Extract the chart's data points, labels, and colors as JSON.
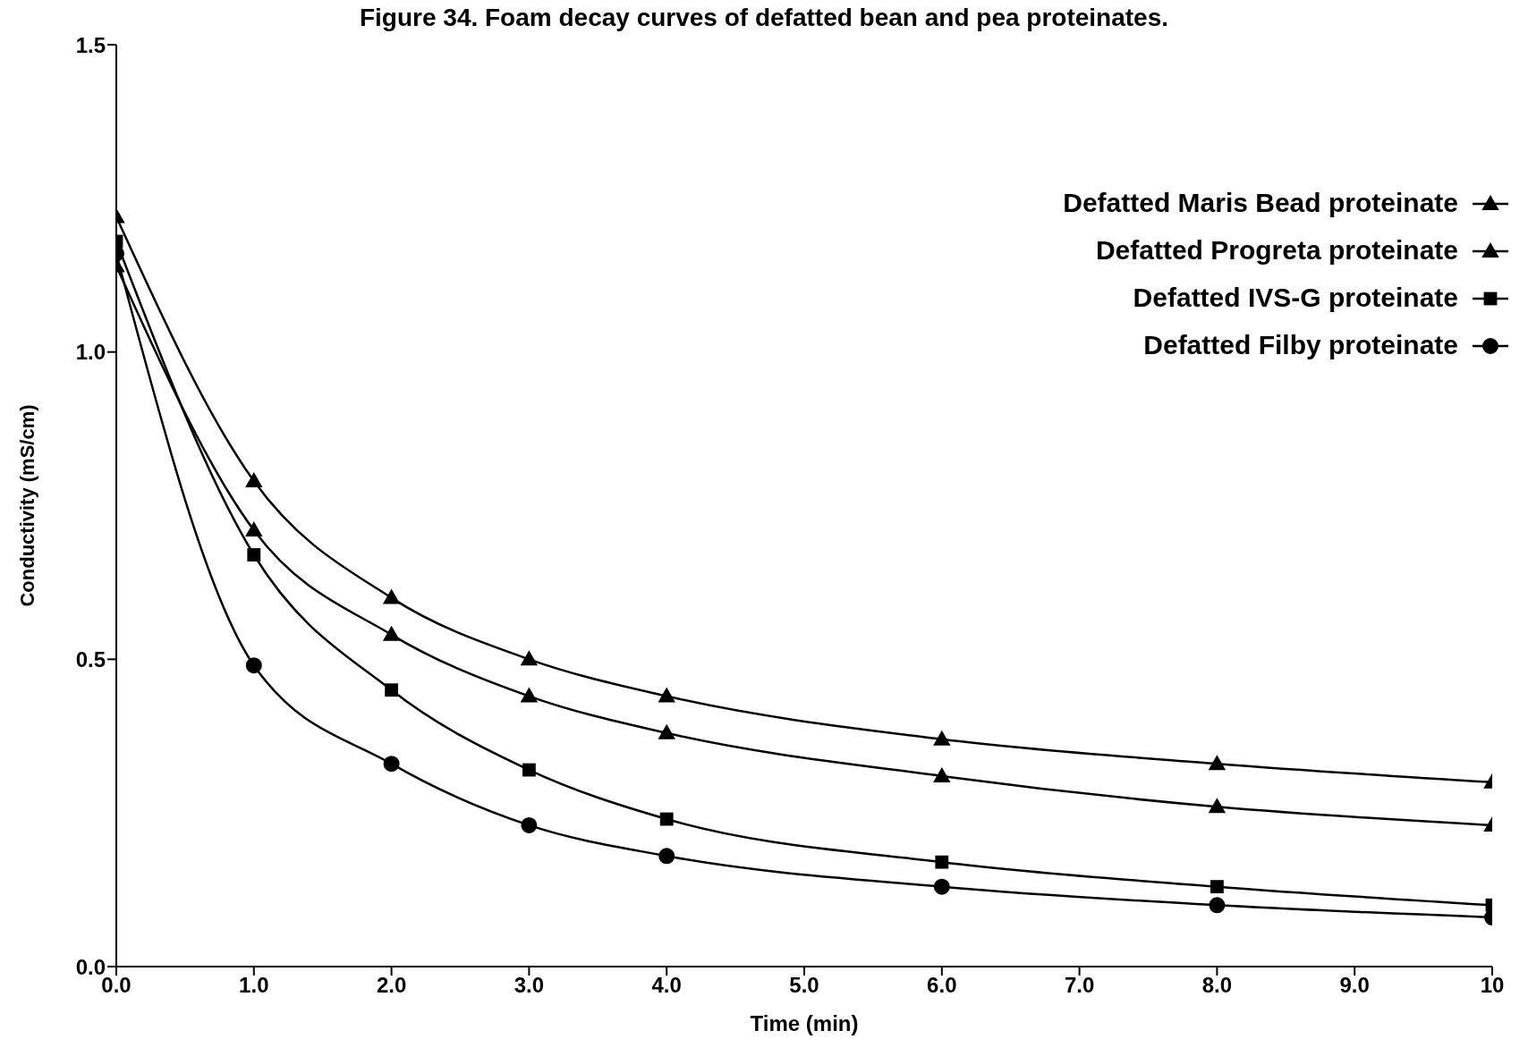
{
  "chart_data": {
    "type": "line",
    "title": "Figure 34. Foam decay curves of defatted bean and pea proteinates.",
    "xlabel": "Time (min)",
    "ylabel": "Conductivity (mS/cm)",
    "x": [
      0,
      1,
      2,
      3,
      4,
      6,
      8,
      10
    ],
    "series": [
      {
        "name": "Defatted Maris Bead proteinate",
        "color": "#000000",
        "marker": "triangle",
        "values": [
          1.22,
          0.79,
          0.6,
          0.5,
          0.44,
          0.37,
          0.33,
          0.3
        ]
      },
      {
        "name": "Defatted Progreta proteinate",
        "color": "#000000",
        "marker": "triangle",
        "values": [
          1.14,
          0.71,
          0.54,
          0.44,
          0.38,
          0.31,
          0.26,
          0.23
        ]
      },
      {
        "name": "Defatted IVS-G proteinate",
        "color": "#000000",
        "marker": "square",
        "values": [
          1.18,
          0.67,
          0.45,
          0.32,
          0.24,
          0.17,
          0.13,
          0.1
        ]
      },
      {
        "name": "Defatted Filby proteinate",
        "color": "#000000",
        "marker": "circle",
        "values": [
          1.16,
          0.49,
          0.33,
          0.23,
          0.18,
          0.13,
          0.1,
          0.08
        ]
      }
    ],
    "xlim": [
      0,
      10
    ],
    "ylim": [
      0,
      1.5
    ],
    "xticks": [
      {
        "value": 0,
        "label": "0.0"
      },
      {
        "value": 1,
        "label": "1.0"
      },
      {
        "value": 2,
        "label": "2.0"
      },
      {
        "value": 3,
        "label": "3.0"
      },
      {
        "value": 4,
        "label": "4.0"
      },
      {
        "value": 5,
        "label": "5.0"
      },
      {
        "value": 6,
        "label": "6.0"
      },
      {
        "value": 7,
        "label": "7.0"
      },
      {
        "value": 8,
        "label": "8.0"
      },
      {
        "value": 9,
        "label": "9.0"
      },
      10
    ],
    "yticks": [
      {
        "value": 0,
        "label": "0.0"
      },
      {
        "value": 0.5,
        "label": "0.5"
      },
      {
        "value": 1,
        "label": "1.0"
      },
      {
        "value": 1.5,
        "label": "1.5"
      }
    ],
    "grid": false,
    "legend": "top right",
    "line_style": "solid"
  }
}
